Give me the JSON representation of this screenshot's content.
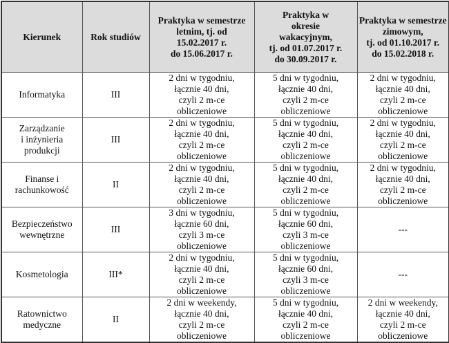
{
  "headers": [
    "Kierunek",
    "Rok studiów",
    "Praktyka w semestrze\nletnim, tj. od\n15.02.2017 r.\ndo 15.06.2017 r.",
    "Praktyka w\nokresie\nwakacyjnym,\ntj. od 01.07.2017 r.\ndo 30.09.2017 r.",
    "Praktyka w semestrze\nzimowym,\ntj. od 01.10.2017 r.\ndo 15.02.2018 r."
  ],
  "rows": [
    [
      "Informatyka",
      "III",
      "2 dni w tygodniu,\nłącznie 40 dni,\nczyli 2 m-ce\nobliczeniowe",
      "5 dni w tygodniu,\nłącznie 40 dni,\nczyli 2 m-ce\nobliczeniowe",
      "2 dni w tygodniu,\nłącznie 40 dni,\nczyli 2 m-ce\nobliczeniowe"
    ],
    [
      "Zarządzanie\ni inżynieria\nprodukcji",
      "III",
      "2 dni w tygodniu,\nłącznie 40 dni,\nczyli 2 m-ce\nobliczeniowe",
      "5 dni w tygodniu,\nłącznie 40 dni,\nczyli 2 m-ce\nobliczeniowe",
      "2 dni w tygodniu,\nłącznie 40 dni,\nczyli 2 m-ce\nobliczeniowe"
    ],
    [
      "Finanse i\nrachunkowość",
      "II",
      "2 dni w tygodniu,\nłącznie 40 dni,\nczyli 2 m-ce\nobliczeniowe",
      "5 dni w tygodniu,\nłącznie 40 dni,\nczyli 2 m-ce\nobliczeniowe",
      "2 dni w tygodniu,\nłącznie 40 dni,\nczyli 2 m-ce\nobliczeniowe"
    ],
    [
      "Bezpieczeństwo\nwewnętrzne",
      "III",
      "3 dni w tygodniu,\nłącznie 60 dni,\nczyli 3 m-ce\nobliczeniowe",
      "5 dni w tygodniu,\nłącznie 60 dni,\nczyli 3 m-ce\nobliczeniowe",
      "---"
    ],
    [
      "Kosmetologia",
      "III*",
      "2 dni w tygodniu,\nłącznie 40 dni,\nczyli 2 m-ce\nobliczeniowe",
      "5 dni w tygodniu,\nłącznie 60 dni,\nczyli 3 m-ce\nobliczeniowe",
      "---"
    ],
    [
      "Ratownictwo\nmedyczne",
      "II",
      "2 dni w weekendy,\nłącznie 40 dni,\nczyli 2 m-ce\nobliczeniowe",
      "5 dni w tygodniu,\nłącznie 40 dni,\nczyli 2 m-ce\nobliczeniowe",
      "2 dni w weekendy,\nłącznie 40 dni,\nczyli 2 m-ce\nobliczeniowe"
    ]
  ]
}
